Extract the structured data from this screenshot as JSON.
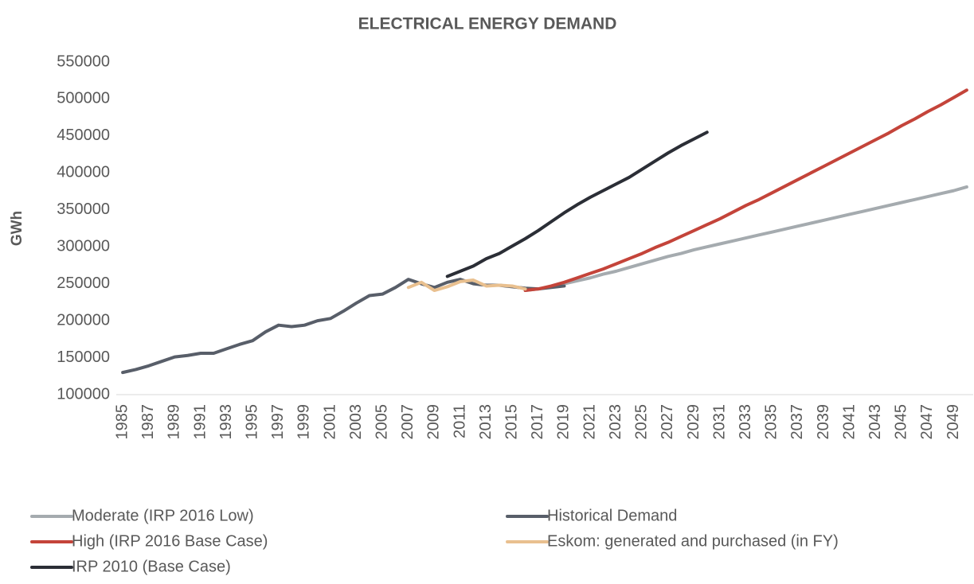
{
  "chart_data": {
    "type": "line",
    "title": "ELECTRICAL ENERGY DEMAND",
    "y_label": "GWh",
    "categories": [
      "1985",
      null,
      "1987",
      null,
      "1989",
      null,
      "1991",
      null,
      "1993",
      null,
      "1995",
      null,
      "1997",
      null,
      "1999",
      null,
      "2001",
      null,
      "2003",
      null,
      "2005",
      null,
      "2007",
      null,
      "2009",
      null,
      "2011",
      null,
      "2013",
      null,
      "2015",
      null,
      "2017",
      null,
      "2019",
      null,
      "2021",
      null,
      "2023",
      null,
      "2025",
      null,
      "2027",
      null,
      "2029",
      null,
      "2031",
      null,
      "2033",
      null,
      "2035",
      null,
      "2037",
      null,
      "2039",
      null,
      "2041",
      null,
      "2043",
      null,
      "2045",
      null,
      "2047",
      null,
      "2049",
      null
    ],
    "ylim": [
      100000,
      550000
    ],
    "yticks": [
      100000,
      150000,
      200000,
      250000,
      300000,
      350000,
      400000,
      450000,
      500000,
      550000
    ],
    "series": [
      {
        "name": "Moderate (IRP 2016 Low)",
        "color": "#a5abaf",
        "values": [
          null,
          null,
          null,
          null,
          null,
          null,
          null,
          null,
          null,
          null,
          null,
          null,
          null,
          null,
          null,
          null,
          null,
          null,
          null,
          null,
          null,
          null,
          null,
          null,
          null,
          null,
          null,
          null,
          null,
          null,
          null,
          241000,
          243000,
          246000,
          250000,
          254000,
          258000,
          263000,
          267000,
          272000,
          277000,
          282000,
          287000,
          291000,
          296000,
          300000,
          304000,
          308000,
          312000,
          316000,
          320000,
          324000,
          328000,
          332000,
          336000,
          340000,
          344000,
          348000,
          352000,
          356000,
          360000,
          364000,
          368000,
          372000,
          376000,
          381000
        ]
      },
      {
        "name": "Historical Demand",
        "color": "#585e69",
        "values": [
          130000,
          134000,
          139000,
          145000,
          151000,
          153000,
          156000,
          156000,
          162000,
          168000,
          173000,
          185000,
          194000,
          192000,
          194000,
          200000,
          203000,
          213000,
          224000,
          234000,
          236000,
          245000,
          256000,
          250000,
          245000,
          252000,
          256000,
          250000,
          248000,
          248000,
          246000,
          244000,
          243000,
          245000,
          247000,
          null,
          null,
          null,
          null,
          null,
          null,
          null,
          null,
          null,
          null,
          null,
          null,
          null,
          null,
          null,
          null,
          null,
          null,
          null,
          null,
          null,
          null,
          null,
          null,
          null,
          null,
          null,
          null,
          null,
          null,
          null
        ]
      },
      {
        "name": "High (IRP 2016 Base Case)",
        "color": "#c4443a",
        "values": [
          null,
          null,
          null,
          null,
          null,
          null,
          null,
          null,
          null,
          null,
          null,
          null,
          null,
          null,
          null,
          null,
          null,
          null,
          null,
          null,
          null,
          null,
          null,
          null,
          null,
          null,
          null,
          null,
          null,
          null,
          null,
          241000,
          243000,
          247000,
          252000,
          258000,
          264000,
          270000,
          277000,
          284000,
          291000,
          299000,
          306000,
          314000,
          322000,
          330000,
          338000,
          347000,
          356000,
          364000,
          373000,
          382000,
          391000,
          400000,
          409000,
          418000,
          427000,
          436000,
          445000,
          454000,
          464000,
          473000,
          483000,
          492000,
          502000,
          512000
        ]
      },
      {
        "name": "Eskom: generated and purchased (in FY)",
        "color": "#e9c08f",
        "values": [
          null,
          null,
          null,
          null,
          null,
          null,
          null,
          null,
          null,
          null,
          null,
          null,
          null,
          null,
          null,
          null,
          null,
          null,
          null,
          null,
          null,
          null,
          245000,
          252000,
          241000,
          246000,
          253000,
          255000,
          247000,
          248000,
          247000,
          243000,
          null,
          null,
          null,
          null,
          null,
          null,
          null,
          null,
          null,
          null,
          null,
          null,
          null,
          null,
          null,
          null,
          null,
          null,
          null,
          null,
          null,
          null,
          null,
          null,
          null,
          null,
          null,
          null,
          null,
          null,
          null,
          null,
          null,
          null
        ]
      },
      {
        "name": "IRP 2010 (Base Case)",
        "color": "#2b2e36",
        "values": [
          null,
          null,
          null,
          null,
          null,
          null,
          null,
          null,
          null,
          null,
          null,
          null,
          null,
          null,
          null,
          null,
          null,
          null,
          null,
          null,
          null,
          null,
          null,
          null,
          null,
          260000,
          267000,
          274000,
          284000,
          291000,
          301000,
          311000,
          322000,
          334000,
          346000,
          357000,
          367000,
          376000,
          385000,
          394000,
          405000,
          416000,
          427000,
          437000,
          446000,
          455000,
          null,
          null,
          null,
          null,
          null,
          null,
          null,
          null,
          null,
          null,
          null,
          null,
          null,
          null,
          null,
          null,
          null,
          null,
          null,
          null
        ]
      }
    ]
  }
}
